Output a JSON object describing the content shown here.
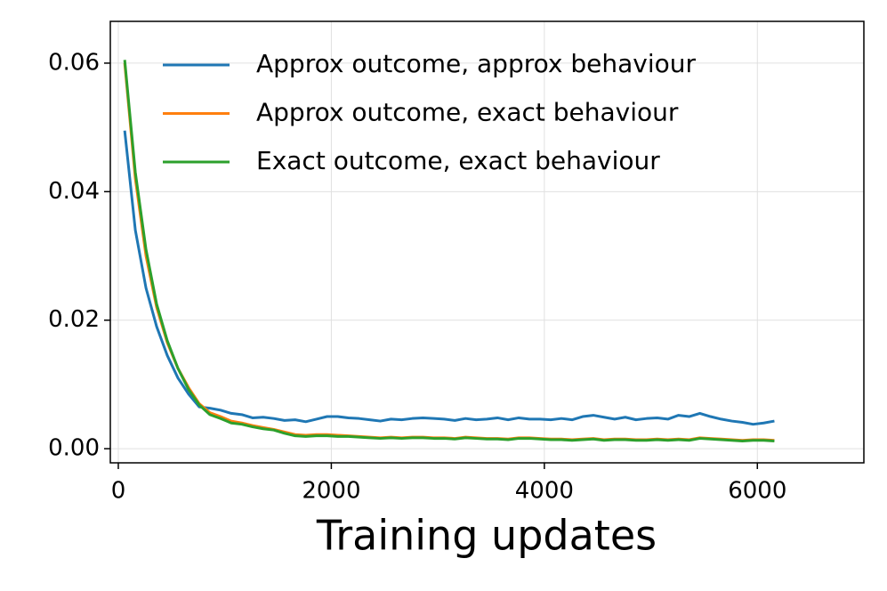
{
  "chart_data": {
    "type": "line",
    "x_label": "Training updates",
    "x": [
      60,
      160,
      260,
      360,
      460,
      560,
      660,
      760,
      860,
      960,
      1060,
      1160,
      1260,
      1360,
      1460,
      1560,
      1660,
      1760,
      1860,
      1960,
      2060,
      2160,
      2260,
      2360,
      2460,
      2560,
      2660,
      2760,
      2860,
      2960,
      3060,
      3160,
      3260,
      3360,
      3460,
      3560,
      3660,
      3760,
      3860,
      3960,
      4060,
      4160,
      4260,
      4360,
      4460,
      4560,
      4660,
      4760,
      4860,
      4960,
      5060,
      5160,
      5260,
      5360,
      5460,
      5560,
      5660,
      5760,
      5860,
      5960,
      6060,
      6160
    ],
    "series": [
      {
        "name": "Approx outcome, approx behaviour",
        "color": "#1f77b4",
        "values": [
          0.0495,
          0.034,
          0.025,
          0.019,
          0.0145,
          0.011,
          0.0085,
          0.0065,
          0.0063,
          0.006,
          0.0055,
          0.0053,
          0.0048,
          0.0049,
          0.0047,
          0.0044,
          0.0045,
          0.0042,
          0.0046,
          0.005,
          0.005,
          0.0048,
          0.0047,
          0.0045,
          0.0043,
          0.0046,
          0.0045,
          0.0047,
          0.0048,
          0.0047,
          0.0046,
          0.0044,
          0.0047,
          0.0045,
          0.0046,
          0.0048,
          0.0045,
          0.0048,
          0.0046,
          0.0046,
          0.0045,
          0.0047,
          0.0045,
          0.005,
          0.0052,
          0.0049,
          0.0046,
          0.0049,
          0.0045,
          0.0047,
          0.0048,
          0.0046,
          0.0052,
          0.005,
          0.0055,
          0.005,
          0.0046,
          0.0043,
          0.0041,
          0.0038,
          0.004,
          0.0043
        ]
      },
      {
        "name": "Approx outcome, exact behaviour",
        "color": "#ff7f0e",
        "values": [
          0.06,
          0.042,
          0.03,
          0.022,
          0.0165,
          0.0125,
          0.0095,
          0.007,
          0.0056,
          0.005,
          0.0043,
          0.004,
          0.0036,
          0.0033,
          0.003,
          0.0026,
          0.0022,
          0.0021,
          0.0022,
          0.0022,
          0.0021,
          0.002,
          0.0019,
          0.0018,
          0.0017,
          0.0018,
          0.0017,
          0.0018,
          0.0018,
          0.0017,
          0.0017,
          0.0016,
          0.0018,
          0.0017,
          0.0016,
          0.0016,
          0.0015,
          0.0017,
          0.0017,
          0.0016,
          0.0015,
          0.0015,
          0.0014,
          0.0015,
          0.0016,
          0.0014,
          0.0015,
          0.0015,
          0.0014,
          0.0014,
          0.0015,
          0.0014,
          0.0015,
          0.0014,
          0.0017,
          0.0016,
          0.0015,
          0.0014,
          0.0013,
          0.0014,
          0.0014,
          0.0013
        ]
      },
      {
        "name": "Exact outcome, exact behaviour",
        "color": "#2ca02c",
        "values": [
          0.0605,
          0.043,
          0.031,
          0.0225,
          0.0168,
          0.0125,
          0.0092,
          0.0068,
          0.0053,
          0.0047,
          0.004,
          0.0038,
          0.0034,
          0.0031,
          0.0029,
          0.0024,
          0.002,
          0.0019,
          0.002,
          0.002,
          0.0019,
          0.0019,
          0.0018,
          0.0017,
          0.0016,
          0.0017,
          0.0016,
          0.0017,
          0.0017,
          0.0016,
          0.0016,
          0.0015,
          0.0017,
          0.0016,
          0.0015,
          0.0015,
          0.0014,
          0.0016,
          0.0016,
          0.0015,
          0.0014,
          0.0014,
          0.0013,
          0.0014,
          0.0015,
          0.0013,
          0.0014,
          0.0014,
          0.0013,
          0.0013,
          0.0014,
          0.0013,
          0.0014,
          0.0013,
          0.0016,
          0.0015,
          0.0014,
          0.0013,
          0.0012,
          0.0013,
          0.0013,
          0.0012
        ]
      }
    ],
    "xlim": [
      -75,
      7000
    ],
    "xticks": [
      0,
      2000,
      4000,
      6000
    ],
    "ylim": [
      -0.0022,
      0.0665
    ],
    "yticks": [
      {
        "value": 0,
        "label": "0.00"
      },
      0.02,
      0.04,
      0.06
    ],
    "grid": true,
    "legend": "upper center"
  }
}
